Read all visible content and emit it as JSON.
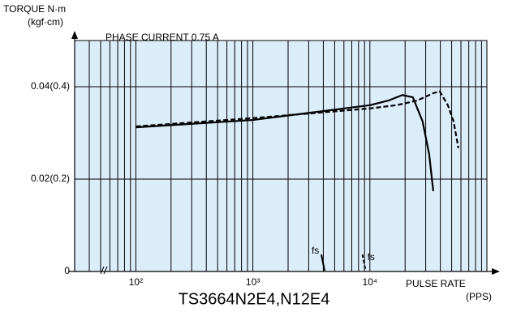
{
  "chart_data": {
    "type": "line",
    "title": "TS3664N2E4,N12E4",
    "subtitle": "PHASE CURRENT  0.75  A",
    "y_label": "TORQUE N·m",
    "y_label_2": "(kgf·cm)",
    "x_label": "PULSE RATE",
    "x_unit": "(PPS)",
    "x_scale": "log",
    "xlim": [
      30,
      100000
    ],
    "ylim": [
      0,
      0.05
    ],
    "xticks": [
      {
        "value": 100,
        "label": "10²"
      },
      {
        "value": 1000,
        "label": "10³"
      },
      {
        "value": 10000,
        "label": "10⁴"
      }
    ],
    "yticks": [
      0,
      {
        "value": 0.02,
        "label": "0.02(0.2)"
      },
      {
        "value": 0.04,
        "label": "0.04(0.4)"
      }
    ],
    "xminorticks": [
      30,
      40,
      50,
      60,
      70,
      80,
      90,
      200,
      300,
      400,
      500,
      600,
      700,
      800,
      900,
      2000,
      3000,
      4000,
      5000,
      6000,
      7000,
      8000,
      9000,
      20000,
      30000,
      40000,
      50000,
      60000,
      70000,
      80000,
      90000
    ],
    "grid": true,
    "background": "#dcedfa",
    "series": [
      {
        "style": "solid",
        "color": "#000000",
        "x": [
          100,
          1000,
          10000,
          14400,
          18970,
          23300,
          28200,
          32100,
          34800
        ],
        "values": [
          0.0312,
          0.0328,
          0.036,
          0.037,
          0.0382,
          0.0377,
          0.0325,
          0.0254,
          0.0174
        ]
      },
      {
        "style": "dashed",
        "color": "#000000",
        "x": [
          100,
          1000,
          10000,
          16900,
          25300,
          34800,
          39500,
          46400,
          51900,
          57100
        ],
        "values": [
          0.0314,
          0.0332,
          0.0353,
          0.036,
          0.037,
          0.0386,
          0.039,
          0.036,
          0.0325,
          0.0267
        ]
      }
    ],
    "annotations": [
      {
        "text": "fs",
        "x": 4100,
        "style": "solid"
      },
      {
        "text": "fs",
        "x": 9200,
        "style": "dashed"
      }
    ]
  }
}
